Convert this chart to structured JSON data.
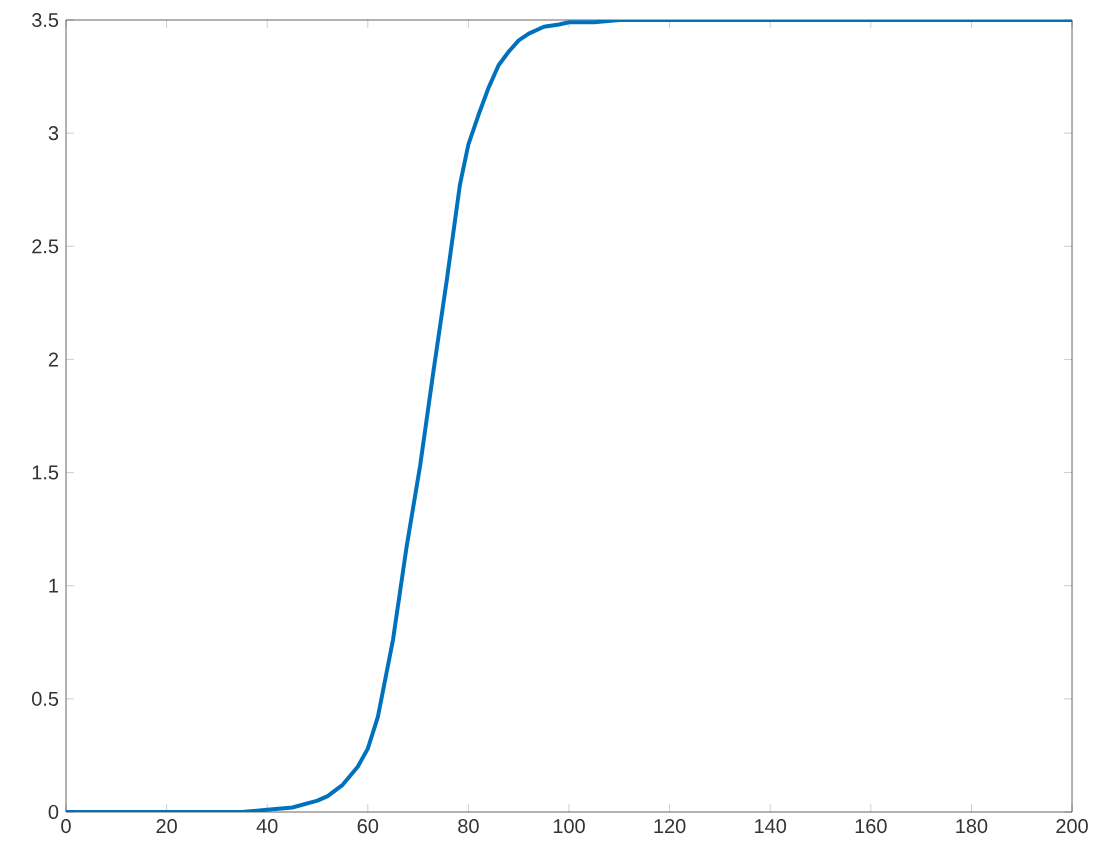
{
  "chart_data": {
    "type": "line",
    "xlim": [
      0,
      200
    ],
    "ylim": [
      0,
      3.5
    ],
    "xticks": [
      0,
      20,
      40,
      60,
      80,
      100,
      120,
      140,
      160,
      180,
      200
    ],
    "yticks": [
      0,
      0.5,
      1,
      1.5,
      2,
      2.5,
      3,
      3.5
    ],
    "series": [
      {
        "color": "#0072bd",
        "x": [
          0,
          10,
          20,
          30,
          35,
          40,
          45,
          50,
          52,
          55,
          58,
          60,
          62,
          65,
          67.7,
          70.4,
          73,
          75.7,
          78.3,
          80,
          82,
          84,
          86,
          88,
          90,
          92,
          95,
          98,
          100,
          105,
          110,
          120,
          140,
          160,
          180,
          200
        ],
        "values": [
          0,
          0,
          0,
          0,
          0,
          0.01,
          0.02,
          0.05,
          0.07,
          0.12,
          0.2,
          0.28,
          0.42,
          0.76,
          1.17,
          1.53,
          1.94,
          2.35,
          2.77,
          2.95,
          3.08,
          3.2,
          3.3,
          3.36,
          3.41,
          3.44,
          3.47,
          3.48,
          3.49,
          3.49,
          3.5,
          3.5,
          3.5,
          3.5,
          3.5,
          3.5
        ]
      }
    ],
    "line_style": "solid",
    "marker": "none"
  }
}
